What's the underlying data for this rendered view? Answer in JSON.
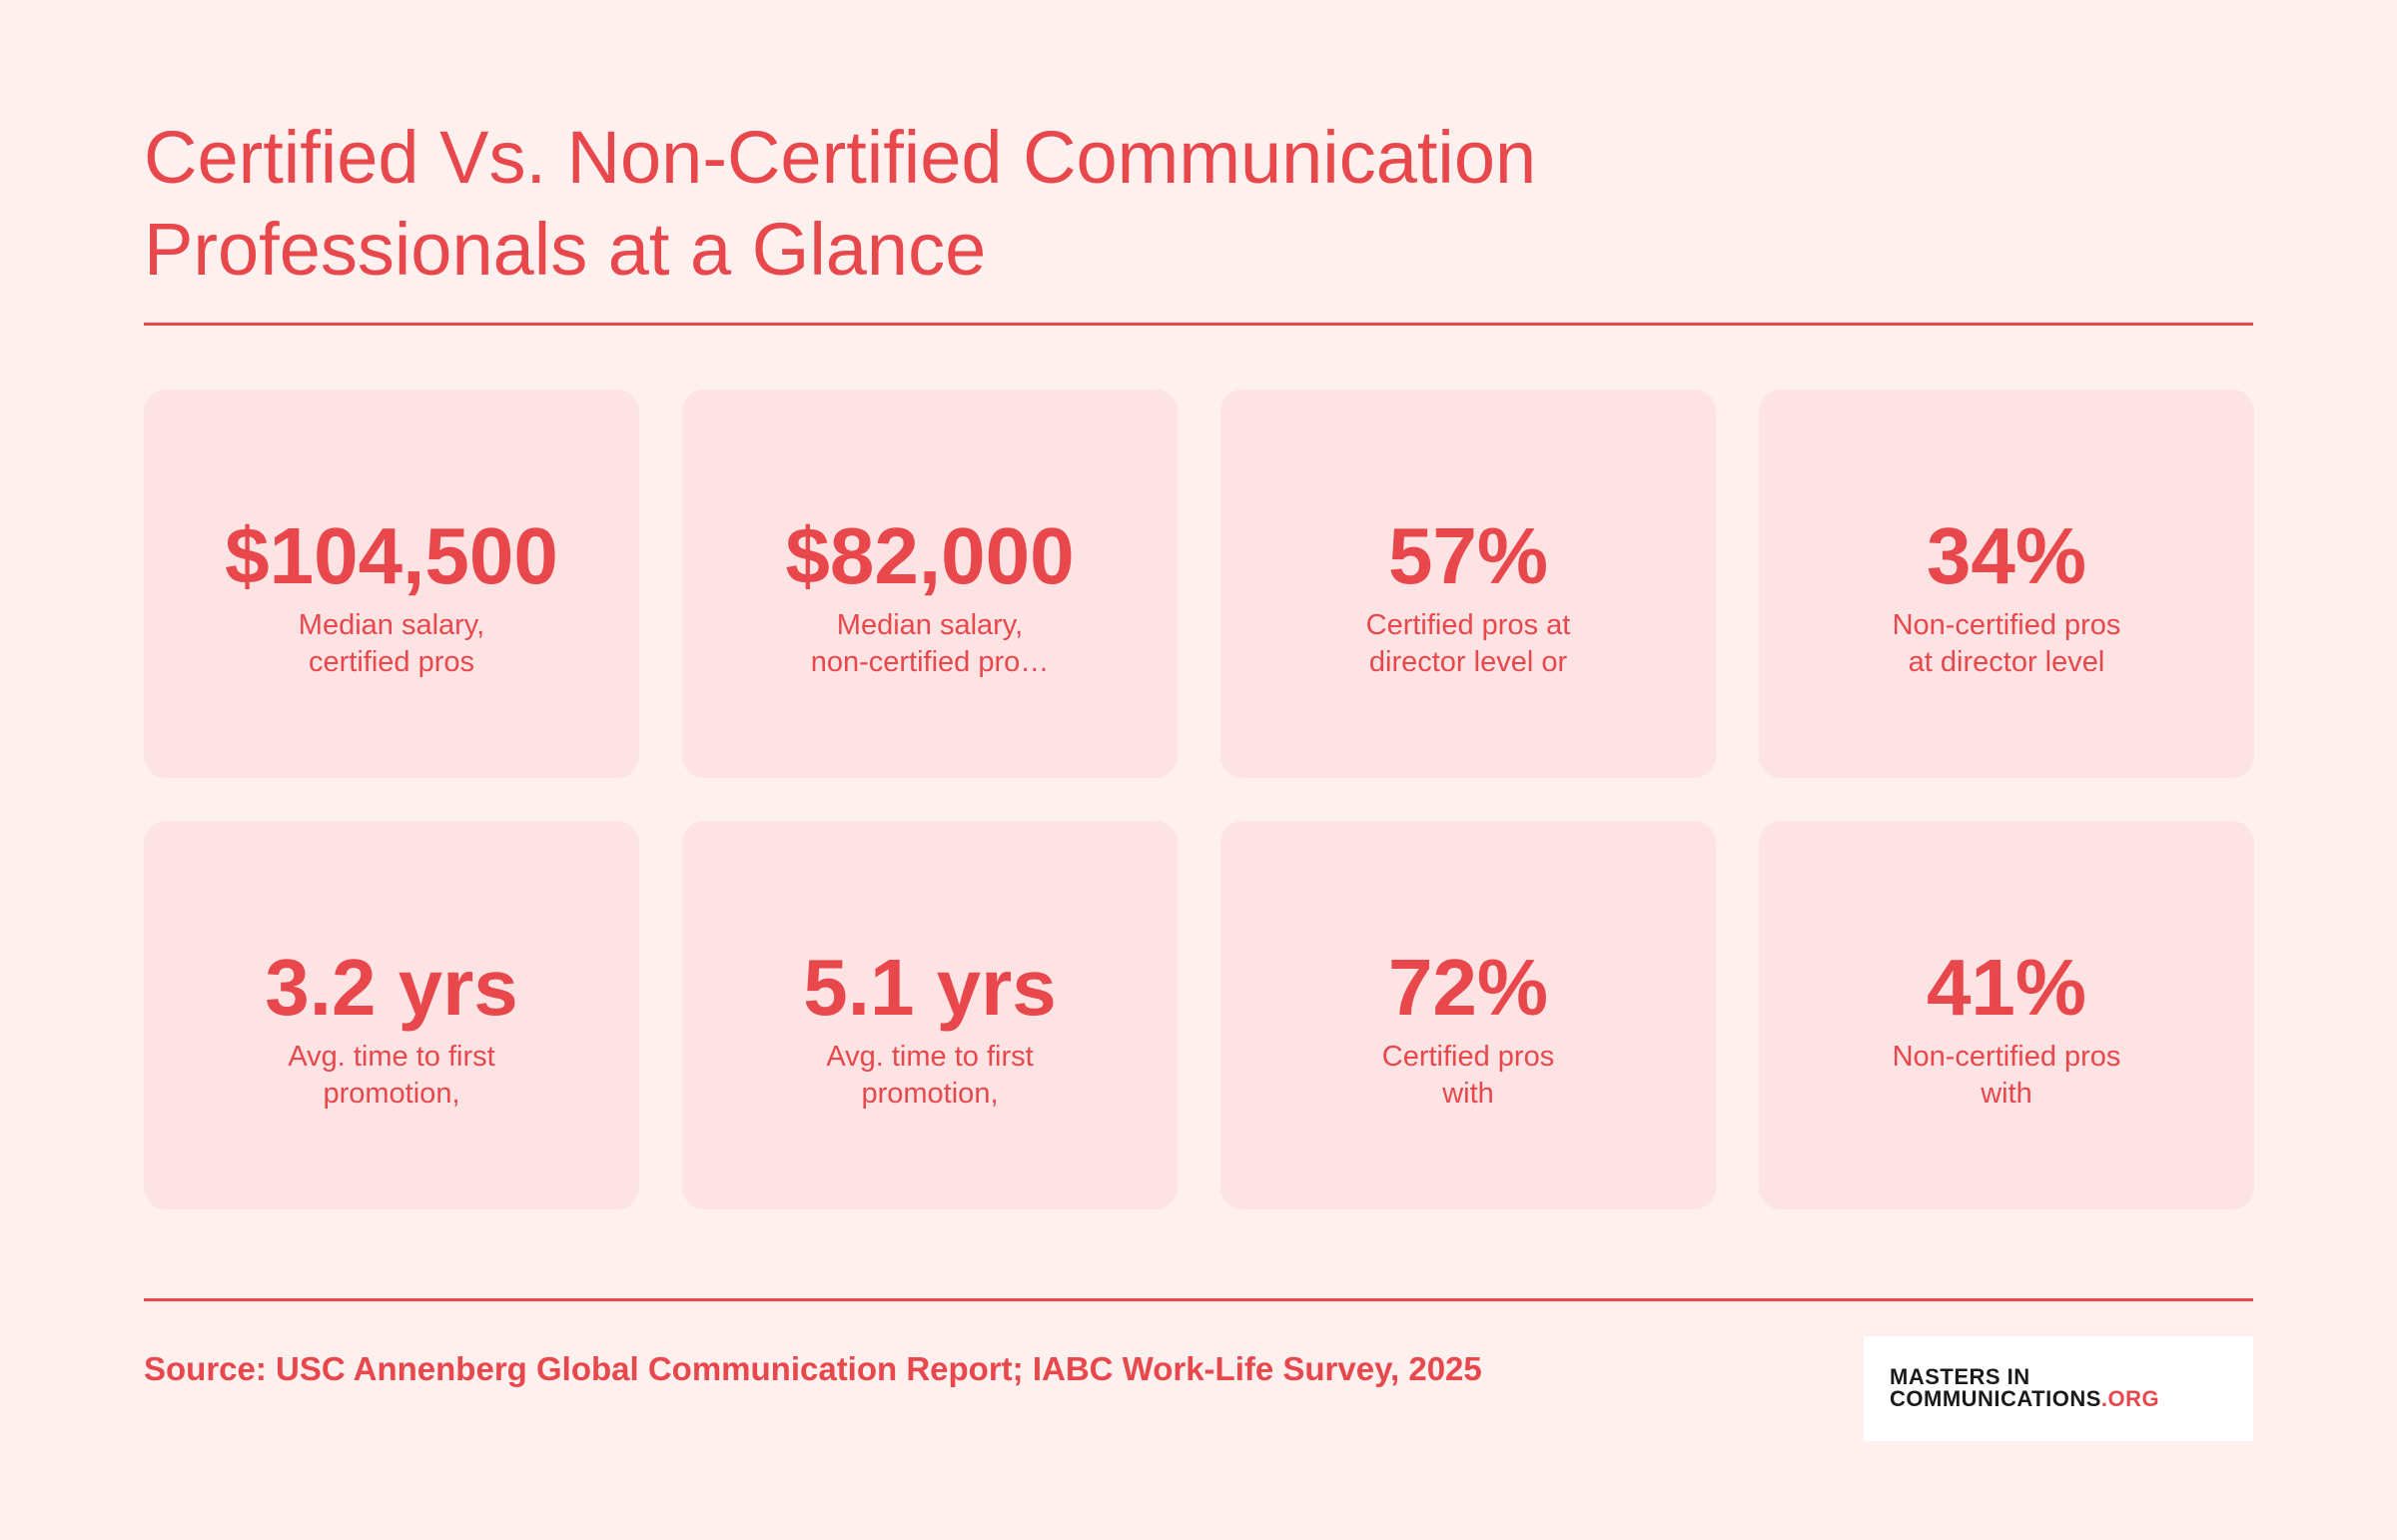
{
  "header": {
    "title_lines": [
      "Certified Vs. Non-Certified Communication",
      "Professionals at a Glance"
    ]
  },
  "cards": [
    {
      "value": "$104,500",
      "label_lines": [
        "Median salary,",
        "certified pros"
      ]
    },
    {
      "value": "$82,000",
      "label_lines": [
        "Median salary,",
        "non-certified pro…"
      ]
    },
    {
      "value": "57%",
      "label_lines": [
        "Certified pros at",
        "director level or"
      ]
    },
    {
      "value": "34%",
      "label_lines": [
        "Non-certified pros",
        "at director level"
      ]
    },
    {
      "value": "3.2 yrs",
      "label_lines": [
        "Avg. time to first",
        "promotion,"
      ]
    },
    {
      "value": "5.1 yrs",
      "label_lines": [
        "Avg. time to first",
        "promotion,"
      ]
    },
    {
      "value": "72%",
      "label_lines": [
        "Certified pros",
        "with"
      ]
    },
    {
      "value": "41%",
      "label_lines": [
        "Non-certified pros",
        "with"
      ]
    }
  ],
  "footer": {
    "source": "Source: USC Annenberg Global Communication Report; IABC Work-Life Survey, 2025",
    "logo": {
      "line1": "MASTERS IN",
      "line2": "COMMUNICATIONS",
      "suffix": ".ORG"
    }
  }
}
